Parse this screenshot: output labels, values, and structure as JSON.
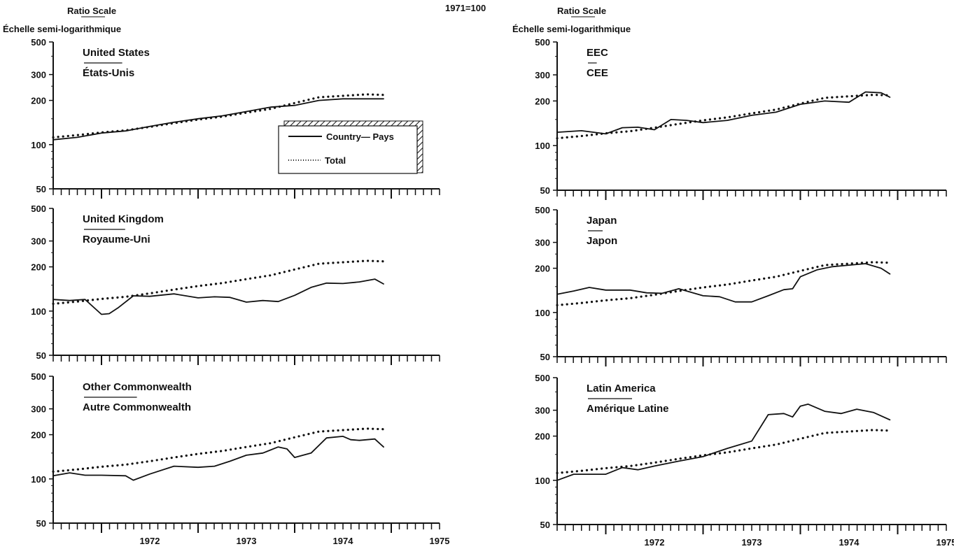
{
  "header": {
    "index_base": "1971=100",
    "left_scale": "Ratio Scale",
    "left_scale_fr": "Échelle semi-logarithmique",
    "right_scale": "Ratio Scale",
    "right_scale_fr": "Échelle semi-logarithmique"
  },
  "legend": {
    "country_label": "Country— Pays",
    "total_label": "Total"
  },
  "colors": {
    "line": "#111111",
    "background": "#ffffff"
  },
  "chart_data": [
    {
      "type": "line",
      "title": "United States",
      "subtitle": "États-Unis",
      "y_scale": "log",
      "ylim": [
        50,
        500
      ],
      "yticks": [
        50,
        100,
        200,
        300,
        500
      ],
      "xlim": [
        1971.5,
        1975.5
      ],
      "xticks": [
        "1972",
        "1973",
        "1974",
        "1975"
      ],
      "series": [
        {
          "name": "Country— Pays",
          "style": "solid",
          "x": [
            1971.5,
            1971.75,
            1972.0,
            1972.25,
            1972.5,
            1972.75,
            1973.0,
            1973.25,
            1973.5,
            1973.75,
            1974.0,
            1974.25,
            1974.5,
            1974.75,
            1974.92
          ],
          "y": [
            108,
            112,
            120,
            124,
            133,
            142,
            150,
            157,
            168,
            180,
            185,
            200,
            205,
            205,
            205
          ]
        },
        {
          "name": "Total",
          "style": "dotted",
          "x": [
            1971.5,
            1971.75,
            1972.0,
            1972.25,
            1972.5,
            1972.75,
            1973.0,
            1973.25,
            1973.5,
            1973.75,
            1974.0,
            1974.25,
            1974.5,
            1974.75,
            1974.92
          ],
          "y": [
            112,
            116,
            121,
            125,
            132,
            140,
            148,
            155,
            165,
            175,
            192,
            210,
            215,
            220,
            218
          ]
        }
      ]
    },
    {
      "type": "line",
      "title": "EEC",
      "subtitle": "CEE",
      "y_scale": "log",
      "ylim": [
        50,
        500
      ],
      "yticks": [
        50,
        100,
        200,
        300,
        500
      ],
      "xlim": [
        1971.5,
        1975.5
      ],
      "xticks": [
        "1972",
        "1973",
        "1974",
        "1975"
      ],
      "series": [
        {
          "name": "Country— Pays",
          "style": "solid",
          "x": [
            1971.5,
            1971.75,
            1972.0,
            1972.17,
            1972.33,
            1972.5,
            1972.67,
            1972.83,
            1973.0,
            1973.25,
            1973.5,
            1973.75,
            1974.0,
            1974.25,
            1974.5,
            1974.67,
            1974.83,
            1974.92
          ],
          "y": [
            123,
            126,
            120,
            132,
            133,
            128,
            150,
            148,
            143,
            148,
            160,
            168,
            190,
            200,
            196,
            230,
            227,
            212
          ]
        },
        {
          "name": "Total",
          "style": "dotted",
          "x": [
            1971.5,
            1971.75,
            1972.0,
            1972.25,
            1972.5,
            1972.75,
            1973.0,
            1973.25,
            1973.5,
            1973.75,
            1974.0,
            1974.25,
            1974.5,
            1974.75,
            1974.92
          ],
          "y": [
            112,
            116,
            121,
            125,
            132,
            140,
            148,
            155,
            165,
            175,
            192,
            210,
            215,
            220,
            218
          ]
        }
      ]
    },
    {
      "type": "line",
      "title": "United Kingdom",
      "subtitle": "Royaume-Uni",
      "y_scale": "log",
      "ylim": [
        50,
        500
      ],
      "yticks": [
        50,
        100,
        200,
        300,
        500
      ],
      "xlim": [
        1971.5,
        1975.5
      ],
      "xticks": [
        "1972",
        "1973",
        "1974",
        "1975"
      ],
      "series": [
        {
          "name": "Country— Pays",
          "style": "solid",
          "x": [
            1971.5,
            1971.67,
            1971.83,
            1972.0,
            1972.08,
            1972.17,
            1972.33,
            1972.5,
            1972.75,
            1973.0,
            1973.17,
            1973.33,
            1973.5,
            1973.67,
            1973.83,
            1974.0,
            1974.17,
            1974.33,
            1974.5,
            1974.67,
            1974.83,
            1974.92
          ],
          "y": [
            120,
            118,
            120,
            95,
            96,
            105,
            127,
            126,
            131,
            123,
            125,
            124,
            115,
            118,
            116,
            128,
            145,
            155,
            154,
            158,
            165,
            153
          ]
        },
        {
          "name": "Total",
          "style": "dotted",
          "x": [
            1971.5,
            1971.75,
            1972.0,
            1972.25,
            1972.5,
            1972.75,
            1973.0,
            1973.25,
            1973.5,
            1973.75,
            1974.0,
            1974.25,
            1974.5,
            1974.75,
            1974.92
          ],
          "y": [
            112,
            116,
            121,
            125,
            132,
            140,
            148,
            155,
            165,
            175,
            192,
            210,
            215,
            220,
            218
          ]
        }
      ]
    },
    {
      "type": "line",
      "title": "Japan",
      "subtitle": "Japon",
      "y_scale": "log",
      "ylim": [
        50,
        500
      ],
      "yticks": [
        50,
        100,
        200,
        300,
        500
      ],
      "xlim": [
        1971.5,
        1975.5
      ],
      "xticks": [
        "1972",
        "1973",
        "1974",
        "1975"
      ],
      "series": [
        {
          "name": "Country— Pays",
          "style": "solid",
          "x": [
            1971.5,
            1971.67,
            1971.83,
            1972.0,
            1972.25,
            1972.42,
            1972.58,
            1972.75,
            1973.0,
            1973.17,
            1973.33,
            1973.5,
            1973.67,
            1973.83,
            1973.92,
            1974.0,
            1974.17,
            1974.33,
            1974.5,
            1974.67,
            1974.83,
            1974.92
          ],
          "y": [
            133,
            140,
            148,
            142,
            142,
            136,
            135,
            145,
            130,
            128,
            118,
            118,
            130,
            143,
            145,
            175,
            195,
            205,
            210,
            215,
            200,
            183
          ]
        },
        {
          "name": "Total",
          "style": "dotted",
          "x": [
            1971.5,
            1971.75,
            1972.0,
            1972.25,
            1972.5,
            1972.75,
            1973.0,
            1973.25,
            1973.5,
            1973.75,
            1974.0,
            1974.25,
            1974.5,
            1974.75,
            1974.92
          ],
          "y": [
            112,
            116,
            121,
            125,
            132,
            140,
            148,
            155,
            165,
            175,
            192,
            210,
            215,
            220,
            218
          ]
        }
      ]
    },
    {
      "type": "line",
      "title": "Other Commonwealth",
      "subtitle": "Autre Commonwealth",
      "y_scale": "log",
      "ylim": [
        50,
        500
      ],
      "yticks": [
        50,
        100,
        200,
        300,
        500
      ],
      "xlim": [
        1971.5,
        1975.5
      ],
      "xticks": [
        "1972",
        "1973",
        "1974",
        "1975"
      ],
      "series": [
        {
          "name": "Country— Pays",
          "style": "solid",
          "x": [
            1971.5,
            1971.67,
            1971.83,
            1972.0,
            1972.25,
            1972.33,
            1972.5,
            1972.75,
            1973.0,
            1973.17,
            1973.33,
            1973.5,
            1973.67,
            1973.83,
            1973.92,
            1974.0,
            1974.17,
            1974.33,
            1974.5,
            1974.58,
            1974.67,
            1974.83,
            1974.92
          ],
          "y": [
            105,
            110,
            106,
            106,
            105,
            98,
            108,
            122,
            120,
            122,
            132,
            145,
            150,
            165,
            160,
            140,
            150,
            190,
            195,
            185,
            183,
            187,
            165
          ]
        },
        {
          "name": "Total",
          "style": "dotted",
          "x": [
            1971.5,
            1971.75,
            1972.0,
            1972.25,
            1972.5,
            1972.75,
            1973.0,
            1973.25,
            1973.5,
            1973.75,
            1974.0,
            1974.25,
            1974.5,
            1974.75,
            1974.92
          ],
          "y": [
            112,
            116,
            121,
            125,
            132,
            140,
            148,
            155,
            165,
            175,
            192,
            210,
            215,
            220,
            218
          ]
        }
      ]
    },
    {
      "type": "line",
      "title": "Latin America",
      "subtitle": "Amérique Latine",
      "y_scale": "log",
      "ylim": [
        50,
        500
      ],
      "yticks": [
        50,
        100,
        200,
        300,
        500
      ],
      "xlim": [
        1971.5,
        1975.5
      ],
      "xticks": [
        "1972",
        "1973",
        "1974",
        "1975"
      ],
      "series": [
        {
          "name": "Country— Pays",
          "style": "solid",
          "x": [
            1971.5,
            1971.67,
            1971.83,
            1972.0,
            1972.17,
            1972.33,
            1972.5,
            1972.75,
            1973.0,
            1973.25,
            1973.5,
            1973.67,
            1973.83,
            1973.92,
            1974.0,
            1974.08,
            1974.25,
            1974.42,
            1974.58,
            1974.75,
            1974.92
          ],
          "y": [
            100,
            110,
            110,
            110,
            122,
            118,
            125,
            135,
            145,
            165,
            185,
            280,
            285,
            270,
            320,
            330,
            295,
            285,
            305,
            290,
            258
          ]
        },
        {
          "name": "Total",
          "style": "dotted",
          "x": [
            1971.5,
            1971.75,
            1972.0,
            1972.25,
            1972.5,
            1972.75,
            1973.0,
            1973.25,
            1973.5,
            1973.75,
            1974.0,
            1974.25,
            1974.5,
            1974.75,
            1974.92
          ],
          "y": [
            112,
            116,
            121,
            125,
            132,
            140,
            148,
            155,
            165,
            175,
            192,
            210,
            215,
            220,
            218
          ]
        }
      ]
    }
  ]
}
